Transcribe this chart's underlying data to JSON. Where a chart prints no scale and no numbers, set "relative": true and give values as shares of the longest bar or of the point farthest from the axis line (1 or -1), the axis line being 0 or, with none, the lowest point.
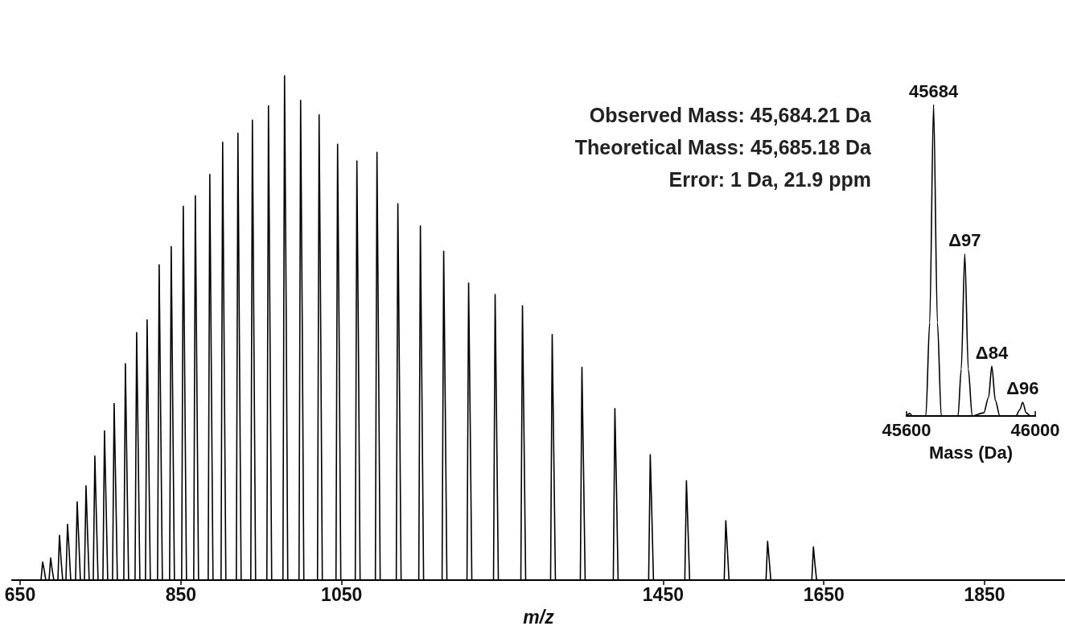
{
  "chart_data": [
    {
      "type": "line",
      "relative": true,
      "xlabel": "m/z",
      "xlim": [
        640,
        1950
      ],
      "xticks": [
        650,
        850,
        1050,
        1450,
        1650,
        1850
      ],
      "grid": false,
      "legend": false,
      "marker": "none",
      "line_style": "solid",
      "annotations": [
        "Observed Mass: 45,684.21 Da",
        "Theoretical Mass: 45,685.18 Da",
        "Error: 1 Da, 21.9 ppm"
      ],
      "series": [
        {
          "color": "#000000",
          "x": [
            640,
            676,
            678,
            680,
            682,
            686,
            688,
            690,
            692,
            697,
            699,
            701,
            703,
            707,
            709,
            711,
            713,
            719,
            721,
            723,
            725,
            730,
            732,
            734,
            736,
            741,
            743,
            745,
            747,
            753,
            755,
            757,
            759,
            765,
            767,
            769,
            771,
            779,
            781,
            783,
            785,
            793,
            795,
            797,
            799,
            806,
            808,
            810,
            812,
            821,
            823,
            825,
            827,
            836,
            838,
            840,
            842,
            851,
            853,
            855,
            857,
            866,
            868,
            870,
            872,
            884,
            886,
            888,
            890,
            900,
            902,
            904,
            906,
            919,
            921,
            923,
            925,
            937,
            939,
            941,
            943,
            957,
            959,
            961,
            963,
            977,
            979,
            981,
            983,
            997,
            999,
            1001,
            1003,
            1020,
            1022,
            1024,
            1026,
            1043,
            1045,
            1047,
            1049,
            1067,
            1069,
            1071,
            1073,
            1092,
            1094,
            1096,
            1098,
            1118,
            1120,
            1122,
            1124,
            1146,
            1148,
            1150,
            1152,
            1175,
            1177,
            1179,
            1181,
            1206,
            1208,
            1210,
            1212,
            1239,
            1241,
            1243,
            1245,
            1273,
            1275,
            1277,
            1279,
            1310,
            1312,
            1314,
            1316,
            1347,
            1349,
            1351,
            1353,
            1388,
            1390,
            1392,
            1394,
            1432,
            1434,
            1436,
            1438,
            1477,
            1479,
            1481,
            1483,
            1526,
            1528,
            1530,
            1532,
            1578,
            1580,
            1582,
            1584,
            1635,
            1637,
            1639,
            1641,
            1950
          ],
          "values": [
            0,
            0,
            0.036,
            0.02,
            0,
            0,
            0.044,
            0.02,
            0,
            0,
            0.089,
            0.04,
            0,
            0,
            0.111,
            0.06,
            0,
            0,
            0.155,
            0.08,
            0,
            0,
            0.187,
            0.09,
            0,
            0,
            0.246,
            0.12,
            0,
            0,
            0.296,
            0.15,
            0,
            0,
            0.35,
            0.18,
            0,
            0,
            0.429,
            0.21,
            0,
            0,
            0.491,
            0.25,
            0,
            0,
            0.516,
            0.26,
            0,
            0,
            0.625,
            0.31,
            0,
            0,
            0.661,
            0.33,
            0,
            0,
            0.741,
            0.37,
            0,
            0,
            0.762,
            0.38,
            0,
            0,
            0.804,
            0.4,
            0,
            0,
            0.868,
            0.43,
            0,
            0,
            0.886,
            0.44,
            0,
            0,
            0.912,
            0.46,
            0,
            0,
            0.94,
            0.47,
            0,
            0,
            1,
            0.55,
            0,
            0,
            0.951,
            0.52,
            0,
            0,
            0.922,
            0.5,
            0,
            0,
            0.864,
            0.47,
            0,
            0,
            0.831,
            0.45,
            0,
            0,
            0.848,
            0.44,
            0,
            0,
            0.746,
            0.39,
            0,
            0,
            0.702,
            0.36,
            0,
            0,
            0.652,
            0.34,
            0,
            0,
            0.589,
            0.31,
            0,
            0,
            0.566,
            0.29,
            0,
            0,
            0.544,
            0.28,
            0,
            0,
            0.487,
            0.25,
            0,
            0,
            0.422,
            0.22,
            0,
            0,
            0.34,
            0.18,
            0,
            0,
            0.249,
            0.13,
            0,
            0,
            0.197,
            0.1,
            0,
            0,
            0.118,
            0.06,
            0,
            0,
            0.077,
            0.04,
            0,
            0,
            0.066,
            0.03,
            0,
            0
          ]
        }
      ]
    },
    {
      "type": "line",
      "relative": true,
      "xlabel": "Mass (Da)",
      "xlim": [
        45600,
        46000
      ],
      "xticks": [
        45600,
        46000
      ],
      "grid": false,
      "legend": false,
      "marker": "none",
      "line_style": "solid",
      "annotations": [
        {
          "text": "45684",
          "x": 45684,
          "y": 1
        },
        {
          "text": "Δ97",
          "x": 45781,
          "y": 0.52
        },
        {
          "text": "Δ84",
          "x": 45865,
          "y": 0.16
        },
        {
          "text": "Δ96",
          "x": 45961,
          "y": 0.044
        }
      ],
      "series": [
        {
          "color": "#000000",
          "x": [
            45600,
            45610,
            45618,
            45660,
            45672,
            45684,
            45696,
            45708,
            45760,
            45770,
            45781,
            45792,
            45804,
            45840,
            45855,
            45865,
            45876,
            45890,
            45940,
            45952,
            45961,
            45972,
            45985,
            46000
          ],
          "values": [
            0,
            0.008,
            0,
            0,
            0.3,
            1,
            0.3,
            0,
            0,
            0.15,
            0.52,
            0.15,
            0,
            0.01,
            0.06,
            0.16,
            0.05,
            0,
            0,
            0.02,
            0.044,
            0.01,
            0,
            0
          ]
        }
      ]
    }
  ]
}
